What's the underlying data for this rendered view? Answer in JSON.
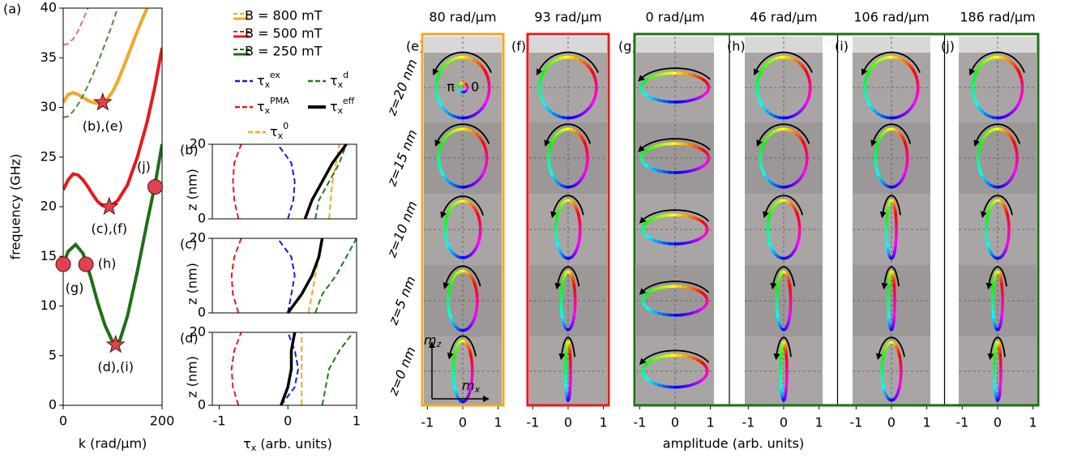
{
  "chart_data": [
    {
      "type": "line",
      "panel_label": "(a)",
      "xlabel": "k (rad/µm)",
      "ylabel": "frequency (GHz)",
      "xlim": [
        0,
        200
      ],
      "ylim": [
        0,
        40
      ],
      "xticks": [
        0,
        200
      ],
      "yticks": [
        0,
        5,
        10,
        15,
        20,
        25,
        30,
        35,
        40
      ],
      "series": [
        {
          "name": "B = 800 mT",
          "color": "#f5a623",
          "x": [
            0,
            10,
            20,
            30,
            40,
            50,
            60,
            70,
            80,
            90,
            100,
            110,
            120,
            130,
            140,
            150,
            160,
            170
          ],
          "values": [
            30.5,
            31.3,
            31.5,
            31.3,
            31,
            30.7,
            30.5,
            30.4,
            30.5,
            30.9,
            31.6,
            32.6,
            33.8,
            35.1,
            36.4,
            37.7,
            38.9,
            40
          ]
        },
        {
          "name": "B = 500 mT",
          "color": "#e8191b",
          "x": [
            0,
            10,
            20,
            30,
            40,
            50,
            60,
            70,
            80,
            93,
            110,
            130,
            150,
            170,
            185,
            200
          ],
          "values": [
            21.7,
            22.7,
            23.3,
            23.2,
            22.7,
            22,
            21.2,
            20.5,
            20.1,
            20,
            20.6,
            22.2,
            25,
            28.6,
            32,
            36
          ]
        },
        {
          "name": "B = 250 mT",
          "color": "#1f6e17",
          "x": [
            0,
            10,
            25,
            40,
            55,
            70,
            85,
            100,
            106,
            115,
            130,
            150,
            170,
            186,
            200
          ],
          "values": [
            14.2,
            15.5,
            16.2,
            15.3,
            13,
            10.3,
            8,
            6.4,
            6.1,
            6.6,
            9,
            13.5,
            18.5,
            22.3,
            26.3
          ]
        },
        {
          "color": "#f06a6a",
          "dashed": true,
          "x": [
            0,
            10,
            20,
            30,
            40,
            50
          ],
          "values": [
            36.3,
            36.4,
            36.9,
            37.7,
            38.8,
            40
          ]
        },
        {
          "color": "#4c8a3c",
          "dashed": true,
          "x": [
            0,
            10,
            20,
            30,
            40,
            50,
            60,
            70,
            80,
            90,
            100,
            110
          ],
          "values": [
            29,
            29.1,
            29.6,
            30.3,
            31.2,
            32.2,
            33.3,
            34.5,
            35.8,
            37.1,
            38.5,
            40
          ]
        }
      ],
      "points": [
        {
          "x": 80,
          "y": 30.5,
          "marker": "star",
          "label": "(b),(e)"
        },
        {
          "x": 93,
          "y": 20,
          "marker": "star",
          "label": "(c),(f)"
        },
        {
          "x": 106,
          "y": 6.1,
          "marker": "star",
          "label": "(d),(i)"
        },
        {
          "x": 0,
          "y": 14.2,
          "marker": "circle",
          "label": "(g)"
        },
        {
          "x": 46,
          "y": 14.2,
          "marker": "circle",
          "label": "(h)"
        },
        {
          "x": 186,
          "y": 22,
          "marker": "circle",
          "label": "(j)"
        }
      ]
    },
    {
      "type": "profile",
      "panel_label": "(b)",
      "ylabel": "z (nm)",
      "xlim": [
        -1.1,
        1
      ],
      "ylim": [
        0,
        20
      ],
      "yticks": [
        0,
        20
      ],
      "y": [
        0,
        5,
        10,
        15,
        20
      ],
      "series": [
        {
          "name": "τ",
          "sub": "x",
          "sup": "ex",
          "color": "#1a1ae6",
          "dashed": true,
          "values": [
            0,
            0.08,
            0.1,
            0.05,
            -0.15
          ]
        },
        {
          "name": "τ",
          "sub": "x",
          "sup": "PMA",
          "color": "#e8191b",
          "dashed": true,
          "values": [
            -0.72,
            -0.78,
            -0.8,
            -0.78,
            -0.68
          ]
        },
        {
          "name": "τ",
          "sub": "x",
          "sup": "0",
          "color": "#f5a623",
          "dashed": true,
          "values": [
            0.6,
            0.62,
            0.65,
            0.7,
            0.75
          ]
        },
        {
          "name": "τ",
          "sub": "x",
          "sup": "d",
          "color": "#1f7a1f",
          "dashed": true,
          "values": [
            0.4,
            0.45,
            0.6,
            0.75,
            0.85
          ]
        },
        {
          "name": "τ",
          "sub": "x",
          "sup": "eff",
          "color": "#000000",
          "values": [
            0.25,
            0.35,
            0.5,
            0.65,
            0.85
          ]
        }
      ]
    },
    {
      "type": "profile",
      "panel_label": "(c)",
      "ylabel": "z (nm)",
      "xlim": [
        -1.1,
        1
      ],
      "ylim": [
        0,
        20
      ],
      "yticks": [
        0,
        20
      ],
      "y": [
        0,
        5,
        10,
        15,
        20
      ],
      "series": [
        {
          "color": "#1a1ae6",
          "dashed": true,
          "values": [
            0,
            0.05,
            0.1,
            0.05,
            -0.15
          ]
        },
        {
          "color": "#e8191b",
          "dashed": true,
          "values": [
            -0.72,
            -0.8,
            -0.82,
            -0.78,
            -0.68
          ]
        },
        {
          "color": "#f5a623",
          "dashed": true,
          "values": [
            0.3,
            0.35,
            0.4,
            0.45,
            0.5
          ]
        },
        {
          "color": "#1f7a1f",
          "dashed": true,
          "values": [
            0.4,
            0.5,
            0.7,
            0.85,
            1
          ]
        },
        {
          "color": "#000000",
          "values": [
            0,
            0.2,
            0.35,
            0.45,
            0.5
          ]
        }
      ]
    },
    {
      "type": "profile",
      "panel_label": "(d)",
      "ylabel": "z (nm)",
      "xlim": [
        -1.1,
        1
      ],
      "ylim": [
        0,
        20
      ],
      "yticks": [
        0,
        20
      ],
      "xticks": [
        -1,
        0,
        1
      ],
      "y": [
        0,
        5,
        10,
        15,
        20
      ],
      "xlabel": "τ",
      "xlabel_sub": "x",
      "xlabel_unit": " (arb. units)",
      "series": [
        {
          "color": "#1a1ae6",
          "dashed": true,
          "values": [
            -0.1,
            0.1,
            0.15,
            0.1,
            0
          ]
        },
        {
          "color": "#e8191b",
          "dashed": true,
          "values": [
            -0.72,
            -0.8,
            -0.82,
            -0.78,
            -0.68
          ]
        },
        {
          "color": "#f5a623",
          "dashed": true,
          "values": [
            0.2,
            0.2,
            0.2,
            0.2,
            0.2
          ]
        },
        {
          "color": "#1f7a1f",
          "dashed": true,
          "values": [
            0.5,
            0.55,
            0.6,
            0.75,
            0.95
          ]
        },
        {
          "color": "#000000",
          "values": [
            -0.1,
            0,
            0.05,
            0.05,
            0.1
          ]
        }
      ]
    },
    {
      "type": "trajectory",
      "xlabel": "amplitude (arb. units)",
      "xlim": [
        -1.1,
        1.1
      ],
      "xticks": [
        -1,
        0,
        1
      ],
      "z_labels": [
        "z=20 nm",
        "z=15 nm",
        "z=10 nm",
        "z=5 nm",
        "z=0 nm"
      ],
      "phase_labels": [
        "π",
        "0"
      ],
      "mz_label": {
        "base": "m",
        "sub": "z"
      },
      "mx_label": {
        "base": "m",
        "sub": "x"
      },
      "panels": [
        {
          "label": "(e)",
          "k_label": "80 rad/µm",
          "frame_color": "#f5a623",
          "mx": [
            0.75,
            0.68,
            0.5,
            0.41,
            0.27
          ],
          "mz": [
            0.86,
            0.82,
            0.8,
            0.84,
            0.86
          ]
        },
        {
          "label": "(f)",
          "k_label": "93 rad/µm",
          "frame_color": "#e8191b",
          "mx": [
            0.8,
            0.55,
            0.34,
            0.2,
            0.07
          ],
          "mz": [
            0.86,
            0.82,
            0.82,
            0.82,
            0.82
          ]
        },
        {
          "label": "(g)",
          "k_label": "0 rad/µm",
          "frame_color": "#1f6e17",
          "mx": [
            0.95,
            0.95,
            0.91,
            0.91,
            0.91
          ],
          "mz": [
            0.41,
            0.41,
            0.41,
            0.41,
            0.45
          ]
        },
        {
          "label": "(h)",
          "k_label": "46 rad/µm",
          "frame_color": "#1f6e17",
          "mx": [
            0.75,
            0.66,
            0.45,
            0.2,
            0.09
          ],
          "mz": [
            0.86,
            0.82,
            0.82,
            0.82,
            0.82
          ]
        },
        {
          "label": "(i)",
          "k_label": "106 rad/µm",
          "frame_color": "#1f6e17",
          "mx": [
            0.75,
            0.45,
            0.14,
            0.09,
            0.27
          ],
          "mz": [
            0.86,
            0.82,
            0.82,
            0.82,
            0.82
          ]
        },
        {
          "label": "(j)",
          "k_label": "186 rad/µm",
          "frame_color": "#1f6e17",
          "mx": [
            0.7,
            0.55,
            0.32,
            0.14,
            0.09
          ],
          "mz": [
            0.86,
            0.82,
            0.82,
            0.82,
            0.82
          ]
        }
      ]
    }
  ]
}
